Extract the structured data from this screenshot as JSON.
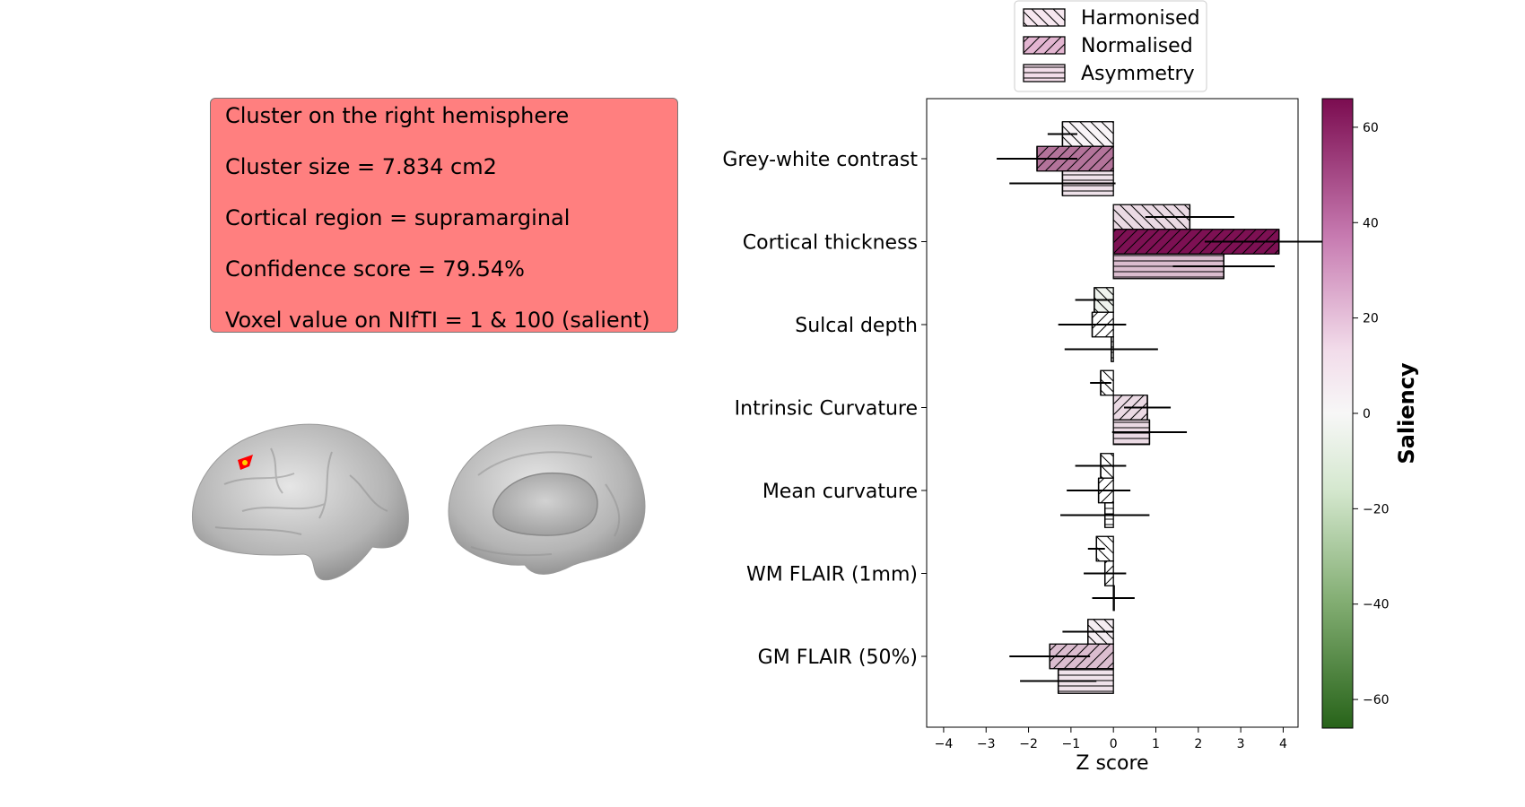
{
  "info_box": {
    "lines": [
      "Cluster on the right hemisphere",
      "Cluster size = 7.834 cm2",
      "Cortical region =  supramarginal",
      "Confidence score =  79.54%",
      "Voxel value on NIfTI = 1 & 100 (salient)"
    ]
  },
  "brain_views": {
    "lateral": "brain-lateral-view",
    "medial": "brain-medial-view",
    "cluster_color": "#ff0000"
  },
  "chart_data": {
    "type": "bar",
    "orientation": "horizontal",
    "categories": [
      "Grey-white contrast",
      "Cortical thickness",
      "Sulcal depth",
      "Intrinsic Curvature",
      "Mean curvature",
      "WM FLAIR (1mm)",
      "GM FLAIR (50%)"
    ],
    "series": [
      {
        "name": "Harmonised",
        "hatch": "\\\\",
        "values": [
          -1.2,
          1.8,
          -0.45,
          -0.3,
          -0.3,
          -0.4,
          -0.6
        ],
        "errors": [
          0.35,
          1.05,
          0.45,
          0.25,
          0.6,
          0.2,
          0.6
        ],
        "saliency": [
          3,
          10,
          -5,
          0,
          0,
          0,
          5
        ]
      },
      {
        "name": "Normalised",
        "hatch": "//",
        "values": [
          -1.8,
          3.9,
          -0.5,
          0.8,
          -0.35,
          -0.2,
          -1.5
        ],
        "errors": [
          0.95,
          1.75,
          0.8,
          0.55,
          0.75,
          0.5,
          0.95
        ],
        "saliency": [
          38,
          65,
          0,
          10,
          0,
          0,
          18
        ]
      },
      {
        "name": "Asymmetry",
        "hatch": "--",
        "values": [
          -1.2,
          2.6,
          -0.05,
          0.85,
          -0.2,
          0.0,
          -1.3
        ],
        "errors": [
          1.25,
          1.2,
          1.1,
          0.88,
          1.05,
          0.5,
          0.9
        ],
        "saliency": [
          8,
          18,
          0,
          10,
          0,
          0,
          8
        ]
      }
    ],
    "xlabel": "Z score",
    "xlim": [
      -4.4,
      4.35
    ],
    "xticks": [
      -4,
      -3,
      -2,
      -1,
      0,
      1,
      2,
      3,
      4
    ],
    "colorbar": {
      "label": "Saliency",
      "range": [
        -66,
        66
      ],
      "ticks": [
        60,
        40,
        20,
        0,
        -20,
        -40,
        -60
      ],
      "tick_labels": [
        "60",
        "40",
        "20",
        "0",
        "−20",
        "−40",
        "−60"
      ],
      "colors": [
        "#7b0c50",
        "#ffffff",
        "#276319"
      ]
    },
    "legend_position": "top-center"
  }
}
